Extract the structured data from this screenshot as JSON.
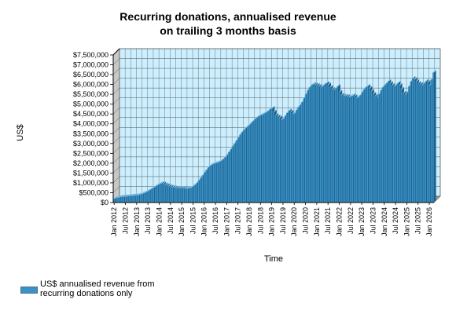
{
  "chart_data": {
    "type": "bar",
    "title_lines": [
      "Recurring donations, annualised revenue",
      "on trailing 3 months basis"
    ],
    "xlabel": "Time",
    "ylabel": "US$",
    "ylim": [
      0,
      7500000
    ],
    "y_ticks": [
      "$0",
      "$500,000",
      "$1,000,000",
      "$1,500,000",
      "$2,000,000",
      "$2,500,000",
      "$3,000,000",
      "$3,500,000",
      "$4,000,000",
      "$4,500,000",
      "$5,000,000",
      "$5,500,000",
      "$6,000,000",
      "$6,500,000",
      "$7,000,000",
      "$7,500,000"
    ],
    "x_ticks": [
      "Jan 2012",
      "Jul 2012",
      "Jan 2013",
      "Jul 2013",
      "Jan 2014",
      "Jul 2014",
      "Jan 2015",
      "Jul 2015",
      "Jan 2016",
      "Jul 2016",
      "Jan 2017",
      "Jul 2017",
      "Jan 2018",
      "Jul 2018",
      "Jan 2019",
      "Jul 2019",
      "Jan 2020",
      "Jul 2020",
      "Jan 2021",
      "Jul 2021",
      "Jan 2022",
      "Jul 2022",
      "Jan 2023",
      "Jul 2023",
      "Jan 2024",
      "Jul 2024",
      "Jan 2025",
      "Jul 2025",
      "Jan 2026"
    ],
    "grid": true,
    "legend_position": "bottom-left",
    "series": [
      {
        "name": "US$ annualised revenue from recurring donations only",
        "color": "#3a93c8",
        "monthly_values": [
          200000,
          220000,
          240000,
          260000,
          270000,
          280000,
          290000,
          300000,
          310000,
          320000,
          330000,
          340000,
          350000,
          380000,
          410000,
          440000,
          480000,
          530000,
          580000,
          640000,
          700000,
          760000,
          820000,
          880000,
          930000,
          960000,
          940000,
          900000,
          860000,
          820000,
          790000,
          760000,
          740000,
          730000,
          720000,
          720000,
          710000,
          700000,
          690000,
          700000,
          720000,
          760000,
          820000,
          900000,
          1000000,
          1120000,
          1250000,
          1380000,
          1520000,
          1650000,
          1780000,
          1860000,
          1920000,
          1960000,
          1990000,
          2020000,
          2060000,
          2120000,
          2200000,
          2300000,
          2420000,
          2560000,
          2700000,
          2850000,
          3000000,
          3150000,
          3300000,
          3450000,
          3580000,
          3680000,
          3780000,
          3860000,
          3950000,
          4050000,
          4150000,
          4240000,
          4320000,
          4380000,
          4430000,
          4470000,
          4520000,
          4580000,
          4650000,
          4740000,
          4780000,
          4600000,
          4420000,
          4350000,
          4300000,
          4200000,
          4250000,
          4400000,
          4550000,
          4650000,
          4600000,
          4500000,
          4520000,
          4700000,
          4850000,
          4950000,
          5100000,
          5300000,
          5500000,
          5700000,
          5850000,
          5950000,
          6000000,
          5980000,
          5950000,
          5900000,
          5850000,
          5900000,
          6000000,
          6050000,
          5980000,
          5850000,
          5750000,
          5700000,
          5800000,
          5900000,
          5600000,
          5450000,
          5400000,
          5400000,
          5380000,
          5350000,
          5380000,
          5420000,
          5380000,
          5300000,
          5350000,
          5450000,
          5600000,
          5750000,
          5850000,
          5900000,
          5800000,
          5650000,
          5500000,
          5400000,
          5350000,
          5500000,
          5700000,
          5850000,
          5950000,
          6050000,
          6150000,
          6050000,
          5950000,
          5900000,
          5950000,
          6050000,
          5950000,
          5750000,
          5550000,
          5480000,
          5600000,
          5900000,
          6150000,
          6300000,
          6250000,
          6150000,
          6050000,
          6000000,
          5950000,
          6050000,
          6150000,
          6100000,
          5950000,
          6250000,
          6600000
        ]
      }
    ]
  },
  "legend": {
    "line1": "US$ annualised revenue from",
    "line2": "recurring donations only"
  }
}
